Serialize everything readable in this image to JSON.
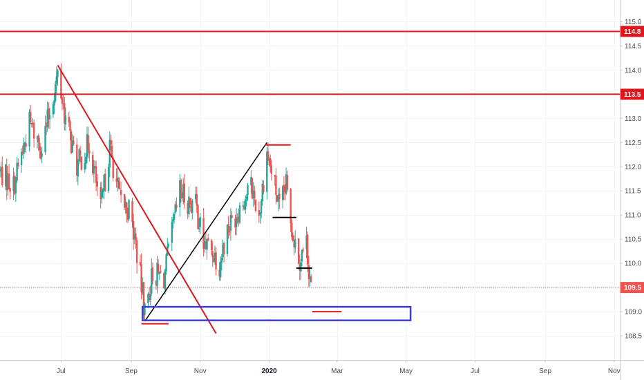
{
  "chart_data": {
    "type": "candlestick",
    "y_axis": {
      "ticks": [
        "115.0",
        "114.5",
        "114.0",
        "113.5",
        "113.0",
        "112.5",
        "112.0",
        "111.5",
        "111.0",
        "110.5",
        "110.0",
        "109.5",
        "109.0",
        "108.5"
      ],
      "range": [
        108.0,
        115.45
      ],
      "side": "right"
    },
    "x_axis": {
      "ticks": [
        {
          "label": "Jul",
          "date": "2019-07-01",
          "bold": false
        },
        {
          "label": "Sep",
          "date": "2019-09-01",
          "bold": false
        },
        {
          "label": "Nov",
          "date": "2019-11-01",
          "bold": false
        },
        {
          "label": "2020",
          "date": "2020-01-01",
          "bold": true
        },
        {
          "label": "Mar",
          "date": "2020-03-01",
          "bold": false
        },
        {
          "label": "May",
          "date": "2020-05-01",
          "bold": false
        },
        {
          "label": "Jul",
          "date": "2020-07-01",
          "bold": false
        },
        {
          "label": "Sep",
          "date": "2020-09-01",
          "bold": false
        },
        {
          "label": "Nov",
          "date": "2020-11-01",
          "bold": false
        }
      ],
      "range": [
        "2019-05-08",
        "2020-11-06"
      ]
    },
    "grid": true,
    "colors": {
      "up": "#26a69a",
      "down": "#ef5350",
      "resistance": "#e0161f",
      "trendline_down": "#e0161f",
      "trendline_up": "#000000",
      "support_box": "#3d3dd6",
      "current_price": "#ef5350"
    },
    "price_labels": [
      {
        "value": "114.8",
        "price": 114.8,
        "kind": "horizontal-line"
      },
      {
        "value": "113.5",
        "price": 113.5,
        "kind": "horizontal-line"
      },
      {
        "value": "109.5",
        "price": 109.5,
        "kind": "current-price"
      }
    ],
    "drawings": {
      "downtrend_line": {
        "start": {
          "date": "2019-06-28",
          "price": 114.1
        },
        "end": {
          "date": "2019-11-15",
          "price": 108.55
        }
      },
      "uptrend_line": {
        "start": {
          "date": "2019-09-13",
          "price": 108.8
        },
        "end": {
          "date": "2019-12-30",
          "price": 112.5
        }
      },
      "support_box": {
        "start": {
          "date": "2019-09-11",
          "price": 109.1
        },
        "end": {
          "date": "2020-05-05",
          "price": 108.82
        }
      },
      "segments": [
        {
          "color": "red",
          "start": {
            "date": "2019-12-28",
            "price": 112.45
          },
          "end": {
            "date": "2020-01-20",
            "price": 112.45
          }
        },
        {
          "color": "black",
          "start": {
            "date": "2020-01-04",
            "price": 110.95
          },
          "end": {
            "date": "2020-01-25",
            "price": 110.95
          }
        },
        {
          "color": "black",
          "start": {
            "date": "2020-01-25",
            "price": 109.9
          },
          "end": {
            "date": "2020-02-08",
            "price": 109.9
          }
        },
        {
          "color": "red",
          "start": {
            "date": "2020-02-08",
            "price": 109.0
          },
          "end": {
            "date": "2020-03-05",
            "price": 109.0
          }
        },
        {
          "color": "red",
          "start": {
            "date": "2019-09-10",
            "price": 108.75
          },
          "end": {
            "date": "2019-10-04",
            "price": 108.75
          }
        }
      ]
    },
    "anchors": [
      {
        "date": "2019-05-08",
        "price": 111.9
      },
      {
        "date": "2019-05-20",
        "price": 111.6
      },
      {
        "date": "2019-06-03",
        "price": 112.9
      },
      {
        "date": "2019-06-14",
        "price": 112.4
      },
      {
        "date": "2019-06-28",
        "price": 113.9
      },
      {
        "date": "2019-07-05",
        "price": 113.0
      },
      {
        "date": "2019-07-15",
        "price": 112.0
      },
      {
        "date": "2019-07-26",
        "price": 112.5
      },
      {
        "date": "2019-08-05",
        "price": 111.1
      },
      {
        "date": "2019-08-13",
        "price": 112.4
      },
      {
        "date": "2019-08-22",
        "price": 111.3
      },
      {
        "date": "2019-08-30",
        "price": 111.1
      },
      {
        "date": "2019-09-05",
        "price": 110.4
      },
      {
        "date": "2019-09-13",
        "price": 109.0
      },
      {
        "date": "2019-09-20",
        "price": 109.8
      },
      {
        "date": "2019-09-30",
        "price": 109.7
      },
      {
        "date": "2019-10-07",
        "price": 110.6
      },
      {
        "date": "2019-10-14",
        "price": 111.5
      },
      {
        "date": "2019-10-21",
        "price": 111.3
      },
      {
        "date": "2019-10-28",
        "price": 111.2
      },
      {
        "date": "2019-11-04",
        "price": 110.4
      },
      {
        "date": "2019-11-11",
        "price": 110.3
      },
      {
        "date": "2019-11-18",
        "price": 110.0
      },
      {
        "date": "2019-11-25",
        "price": 110.7
      },
      {
        "date": "2019-12-02",
        "price": 111.0
      },
      {
        "date": "2019-12-09",
        "price": 111.3
      },
      {
        "date": "2019-12-16",
        "price": 111.6
      },
      {
        "date": "2019-12-23",
        "price": 111.0
      },
      {
        "date": "2019-12-30",
        "price": 112.3
      },
      {
        "date": "2020-01-06",
        "price": 111.6
      },
      {
        "date": "2020-01-10",
        "price": 111.1
      },
      {
        "date": "2020-01-16",
        "price": 111.6
      },
      {
        "date": "2020-01-22",
        "price": 110.6
      },
      {
        "date": "2020-01-28",
        "price": 110.1
      },
      {
        "date": "2020-02-03",
        "price": 110.4
      },
      {
        "date": "2020-02-06",
        "price": 109.7
      },
      {
        "date": "2020-02-07",
        "price": 109.5
      }
    ]
  }
}
